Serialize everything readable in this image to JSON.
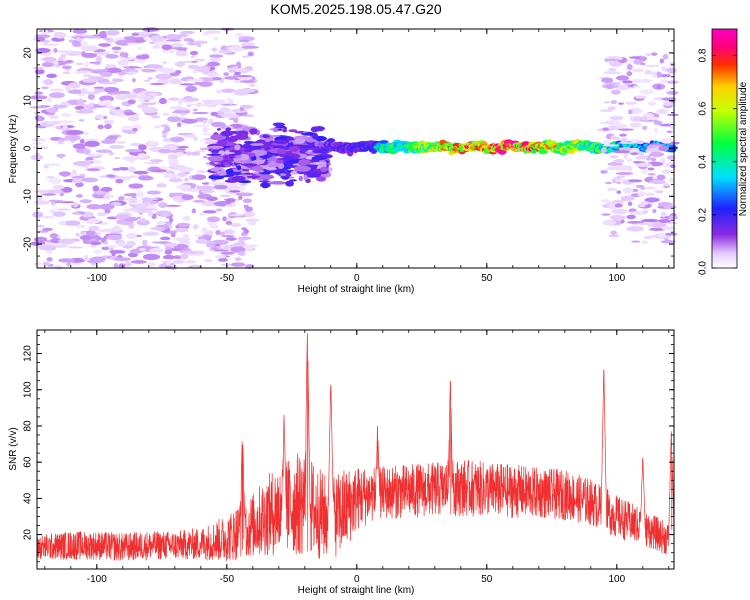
{
  "title": "KOM5.2025.198.05.47.G20",
  "chart_data": [
    {
      "type": "heatmap",
      "xlabel": "Height of straight line (km)",
      "ylabel": "Frequency (Hz)",
      "xlim": [
        -123,
        122
      ],
      "ylim": [
        -25,
        25
      ],
      "xticks": [
        -100,
        -50,
        0,
        50,
        100
      ],
      "xtick_labels": [
        "-100",
        "-50",
        "0",
        "50",
        "100"
      ],
      "yticks": [
        -20,
        -10,
        0,
        10,
        20
      ],
      "ytick_labels": [
        "-20",
        "-10",
        "0",
        "10",
        "20"
      ],
      "grid": false,
      "colorbar": {
        "label": "Normalized spectral amplitude",
        "range": [
          0,
          0.9
        ],
        "ticks": [
          0,
          0.2,
          0.4,
          0.6,
          0.8
        ],
        "tick_labels": [
          "0.0",
          "0.2",
          "0.4",
          "0.6",
          "0.8"
        ],
        "colormap": "rainbow-white-to-magenta"
      },
      "features": [
        {
          "region": "scattered background noise",
          "x_range": [
            -123,
            -40
          ],
          "y_range": [
            -25,
            25
          ],
          "amplitude": 0.05
        },
        {
          "region": "turbulent cluster",
          "x_range": [
            -55,
            -12
          ],
          "y_range": [
            -7,
            3
          ],
          "amplitude": 0.12
        },
        {
          "region": "narrow ridge near 0 Hz",
          "x_range": [
            -12,
            122
          ],
          "y_center": 0.3,
          "amplitude_peak": 0.9
        },
        {
          "region": "sparse high-frequency noise",
          "x_range": [
            95,
            122
          ],
          "y_range": [
            -20,
            20
          ],
          "amplitude": 0.05
        }
      ]
    },
    {
      "type": "line",
      "xlabel": "Height of straight line (km)",
      "ylabel": "SNR (v/v)",
      "xlim": [
        -123,
        122
      ],
      "ylim": [
        1,
        133
      ],
      "xticks": [
        -100,
        -50,
        0,
        50,
        100
      ],
      "xtick_labels": [
        "-100",
        "-50",
        "0",
        "50",
        "100"
      ],
      "yticks": [
        20,
        40,
        60,
        80,
        100,
        120
      ],
      "ytick_labels": [
        "20",
        "40",
        "60",
        "80",
        "100",
        "120"
      ],
      "grid": false,
      "series_color": "#f03030",
      "envelope": {
        "x": [
          -123,
          -110,
          -100,
          -90,
          -80,
          -70,
          -60,
          -50,
          -45,
          -40,
          -35,
          -30,
          -25,
          -20,
          -15,
          -10,
          -5,
          0,
          5,
          10,
          20,
          30,
          40,
          50,
          60,
          70,
          80,
          90,
          100,
          110,
          122
        ],
        "baseline": [
          13,
          14,
          14,
          13,
          14,
          14,
          15,
          18,
          22,
          25,
          30,
          34,
          36,
          38,
          32,
          28,
          33,
          40,
          42,
          43,
          44,
          45,
          46,
          45,
          44,
          43,
          42,
          38,
          30,
          24,
          16
        ],
        "amplitude": [
          7,
          8,
          8,
          8,
          8,
          8,
          9,
          13,
          16,
          18,
          22,
          26,
          28,
          30,
          26,
          22,
          24,
          18,
          16,
          15,
          15,
          15,
          16,
          15,
          15,
          14,
          14,
          13,
          12,
          10,
          9
        ]
      },
      "peaks": [
        {
          "x": -19,
          "y": 133
        },
        {
          "x": -10,
          "y": 104
        },
        {
          "x": -28,
          "y": 84
        },
        {
          "x": -44,
          "y": 75
        },
        {
          "x": 8,
          "y": 80
        },
        {
          "x": 36,
          "y": 107
        },
        {
          "x": 95,
          "y": 111
        },
        {
          "x": 121,
          "y": 76
        },
        {
          "x": 110,
          "y": 62
        }
      ]
    }
  ]
}
